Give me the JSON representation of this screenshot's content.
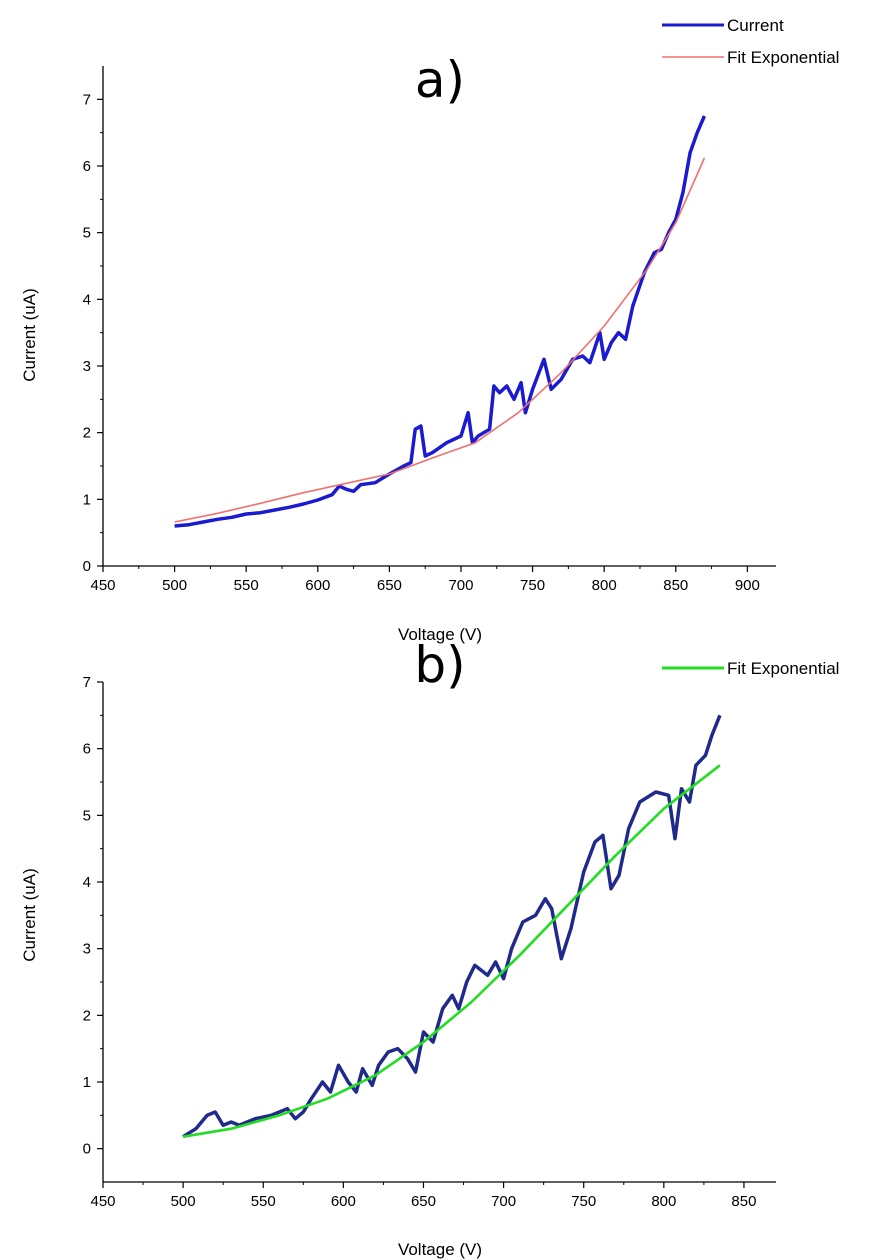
{
  "chart_data": [
    {
      "type": "line",
      "panel_label": "a)",
      "xlabel": "Voltage (V)",
      "ylabel": "Current (uA)",
      "xlim": [
        450,
        920
      ],
      "ylim": [
        0,
        7.5
      ],
      "x_ticks": [
        450,
        500,
        550,
        600,
        650,
        700,
        750,
        800,
        850,
        900
      ],
      "y_ticks": [
        0,
        1,
        2,
        3,
        4,
        5,
        6,
        7
      ],
      "grid": false,
      "legend_position": "top-right",
      "colors": {
        "data": "#1a1ad0",
        "fit": "#f07070"
      },
      "series": [
        {
          "name": "Current",
          "x": [
            500,
            510,
            520,
            530,
            540,
            550,
            560,
            570,
            580,
            590,
            600,
            610,
            615,
            620,
            625,
            630,
            640,
            650,
            660,
            665,
            668,
            672,
            675,
            680,
            690,
            700,
            705,
            708,
            712,
            720,
            723,
            727,
            732,
            737,
            742,
            745,
            750,
            758,
            763,
            770,
            778,
            785,
            790,
            797,
            800,
            805,
            810,
            815,
            820,
            828,
            835,
            840,
            845,
            850,
            855,
            860,
            865,
            870
          ],
          "values": [
            0.6,
            0.62,
            0.66,
            0.7,
            0.73,
            0.78,
            0.8,
            0.84,
            0.88,
            0.93,
            0.99,
            1.07,
            1.2,
            1.15,
            1.12,
            1.22,
            1.25,
            1.38,
            1.5,
            1.55,
            2.05,
            2.1,
            1.65,
            1.7,
            1.85,
            1.95,
            2.3,
            1.85,
            1.95,
            2.05,
            2.7,
            2.6,
            2.7,
            2.5,
            2.75,
            2.3,
            2.65,
            3.1,
            2.65,
            2.8,
            3.1,
            3.15,
            3.05,
            3.5,
            3.1,
            3.35,
            3.5,
            3.4,
            3.9,
            4.4,
            4.7,
            4.75,
            5.0,
            5.2,
            5.6,
            6.2,
            6.5,
            6.75
          ]
        },
        {
          "name": "Fit Exponential",
          "x": [
            500,
            530,
            560,
            590,
            620,
            650,
            680,
            710,
            740,
            770,
            800,
            830,
            850,
            870
          ],
          "values": [
            0.66,
            0.79,
            0.94,
            1.1,
            1.24,
            1.38,
            1.62,
            1.85,
            2.3,
            2.9,
            3.6,
            4.45,
            5.15,
            6.12
          ]
        }
      ]
    },
    {
      "type": "line",
      "panel_label": "b)",
      "xlabel": "Voltage (V)",
      "ylabel": "Current (uA)",
      "xlim": [
        450,
        870
      ],
      "ylim": [
        -0.5,
        7
      ],
      "x_ticks": [
        450,
        500,
        550,
        600,
        650,
        700,
        750,
        800,
        850
      ],
      "y_ticks": [
        0,
        1,
        2,
        3,
        4,
        5,
        6,
        7
      ],
      "grid": false,
      "legend_position": "top-right",
      "colors": {
        "data": "#1f2a8c",
        "fit": "#22dd22"
      },
      "series": [
        {
          "x": [
            500,
            508,
            515,
            520,
            525,
            530,
            535,
            545,
            555,
            565,
            570,
            575,
            580,
            587,
            592,
            597,
            603,
            608,
            612,
            618,
            622,
            628,
            634,
            640,
            645,
            650,
            656,
            662,
            668,
            672,
            677,
            682,
            690,
            695,
            700,
            705,
            712,
            720,
            726,
            730,
            736,
            742,
            750,
            757,
            762,
            767,
            772,
            778,
            785,
            795,
            803,
            807,
            811,
            816,
            820,
            826,
            830,
            835
          ],
          "values": [
            0.18,
            0.3,
            0.5,
            0.55,
            0.35,
            0.4,
            0.35,
            0.45,
            0.5,
            0.6,
            0.45,
            0.55,
            0.75,
            1.0,
            0.85,
            1.25,
            1.0,
            0.85,
            1.2,
            0.95,
            1.25,
            1.45,
            1.5,
            1.35,
            1.15,
            1.75,
            1.6,
            2.1,
            2.3,
            2.1,
            2.5,
            2.75,
            2.6,
            2.8,
            2.55,
            3.0,
            3.4,
            3.5,
            3.75,
            3.6,
            2.85,
            3.3,
            4.15,
            4.6,
            4.7,
            3.9,
            4.1,
            4.8,
            5.2,
            5.35,
            5.3,
            4.65,
            5.4,
            5.2,
            5.75,
            5.9,
            6.2,
            6.5
          ]
        },
        {
          "name": "Fit Exponential",
          "x": [
            500,
            530,
            560,
            590,
            620,
            650,
            680,
            710,
            740,
            770,
            800,
            835
          ],
          "values": [
            0.18,
            0.3,
            0.5,
            0.75,
            1.1,
            1.6,
            2.2,
            2.9,
            3.65,
            4.4,
            5.1,
            5.75
          ]
        }
      ]
    }
  ]
}
